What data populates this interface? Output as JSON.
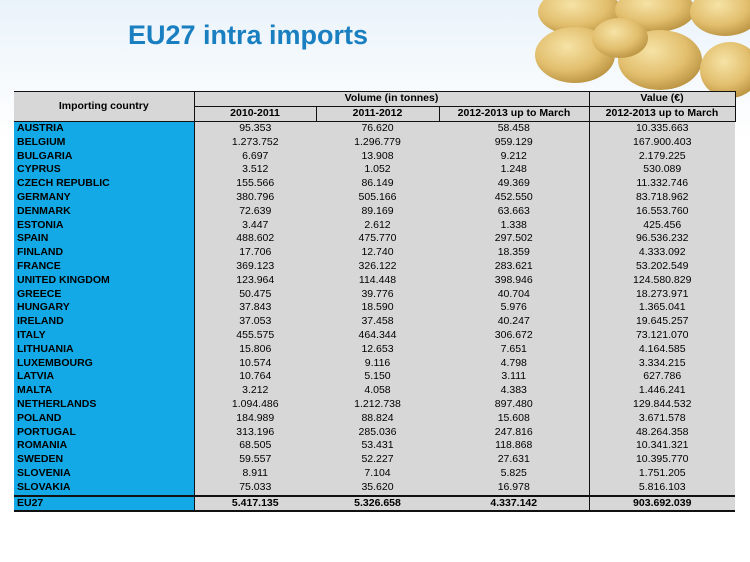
{
  "title": "EU27 intra imports",
  "table": {
    "country_header": "Importing country",
    "volume_header": "Volume (in tonnes)",
    "value_header": "Value (€)",
    "sub_headers": [
      "2010-2011",
      "2011-2012",
      "2012-2013 up to March",
      "2012-2013 up to March"
    ],
    "rows": [
      [
        "AUSTRIA",
        "95.353",
        "76.620",
        "58.458",
        "10.335.663"
      ],
      [
        "BELGIUM",
        "1.273.752",
        "1.296.779",
        "959.129",
        "167.900.403"
      ],
      [
        "BULGARIA",
        "6.697",
        "13.908",
        "9.212",
        "2.179.225"
      ],
      [
        "CYPRUS",
        "3.512",
        "1.052",
        "1.248",
        "530.089"
      ],
      [
        "CZECH REPUBLIC",
        "155.566",
        "86.149",
        "49.369",
        "11.332.746"
      ],
      [
        "GERMANY",
        "380.796",
        "505.166",
        "452.550",
        "83.718.962"
      ],
      [
        "DENMARK",
        "72.639",
        "89.169",
        "63.663",
        "16.553.760"
      ],
      [
        "ESTONIA",
        "3.447",
        "2.612",
        "1.338",
        "425.456"
      ],
      [
        "SPAIN",
        "488.602",
        "475.770",
        "297.502",
        "96.536.232"
      ],
      [
        "FINLAND",
        "17.706",
        "12.740",
        "18.359",
        "4.333.092"
      ],
      [
        "FRANCE",
        "369.123",
        "326.122",
        "283.621",
        "53.202.549"
      ],
      [
        "UNITED KINGDOM",
        "123.964",
        "114.448",
        "398.946",
        "124.580.829"
      ],
      [
        "GREECE",
        "50.475",
        "39.776",
        "40.704",
        "18.273.971"
      ],
      [
        "HUNGARY",
        "37.843",
        "18.590",
        "5.976",
        "1.365.041"
      ],
      [
        "IRELAND",
        "37.053",
        "37.458",
        "40.247",
        "19.645.257"
      ],
      [
        "ITALY",
        "455.575",
        "464.344",
        "306.672",
        "73.121.070"
      ],
      [
        "LITHUANIA",
        "15.806",
        "12.653",
        "7.651",
        "4.164.585"
      ],
      [
        "LUXEMBOURG",
        "10.574",
        "9.116",
        "4.798",
        "3.334.215"
      ],
      [
        "LATVIA",
        "10.764",
        "5.150",
        "3.111",
        "627.786"
      ],
      [
        "MALTA",
        "3.212",
        "4.058",
        "4.383",
        "1.446.241"
      ],
      [
        "NETHERLANDS",
        "1.094.486",
        "1.212.738",
        "897.480",
        "129.844.532"
      ],
      [
        "POLAND",
        "184.989",
        "88.824",
        "15.608",
        "3.671.578"
      ],
      [
        "PORTUGAL",
        "313.196",
        "285.036",
        "247.816",
        "48.264.358"
      ],
      [
        "ROMANIA",
        "68.505",
        "53.431",
        "118.868",
        "10.341.321"
      ],
      [
        "SWEDEN",
        "59.557",
        "52.227",
        "27.631",
        "10.395.770"
      ],
      [
        "SLOVENIA",
        "8.911",
        "7.104",
        "5.825",
        "1.751.205"
      ],
      [
        "SLOVAKIA",
        "75.033",
        "35.620",
        "16.978",
        "5.816.103"
      ]
    ],
    "total": [
      "EU27",
      "5.417.135",
      "5.326.658",
      "4.337.142",
      "903.692.039"
    ]
  },
  "colors": {
    "title": "#1a7fc0",
    "country_cell": "#12a9e6",
    "data_cell": "#d7d7d7"
  },
  "decoration": "potatoes-image"
}
